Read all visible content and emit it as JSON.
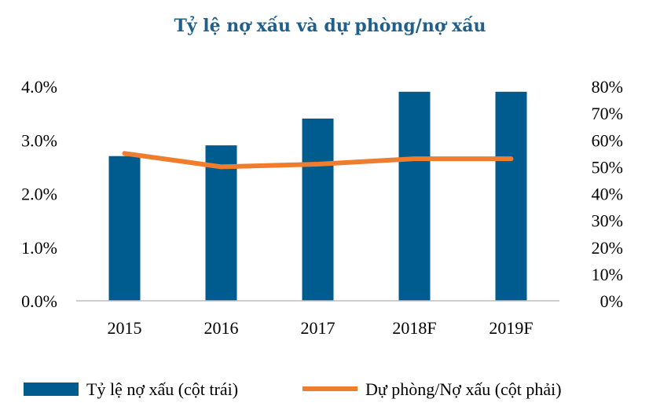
{
  "chart_data": {
    "type": "bar",
    "title": "Tỷ lệ nợ xấu và dự phòng/nợ xấu",
    "categories": [
      "2015",
      "2016",
      "2017",
      "2018F",
      "2019F"
    ],
    "series": [
      {
        "name": "Tỷ lệ nợ xấu (cột trái)",
        "type": "bar",
        "axis": "left",
        "color": "#005b8f",
        "values": [
          2.7,
          2.9,
          3.4,
          3.9,
          3.9
        ]
      },
      {
        "name": "Dự phòng/Nợ xấu (cột phải)",
        "type": "line",
        "axis": "right",
        "color": "#ef7d2e",
        "values": [
          55,
          50,
          51,
          53,
          53
        ]
      }
    ],
    "left_axis": {
      "ylim": [
        0,
        4
      ],
      "ticks": [
        0,
        1,
        2,
        3,
        4
      ],
      "tick_labels": [
        "0.0%",
        "1.0%",
        "2.0%",
        "3.0%",
        "4.0%"
      ]
    },
    "right_axis": {
      "ylim": [
        0,
        80
      ],
      "ticks": [
        0,
        10,
        20,
        30,
        40,
        50,
        60,
        70,
        80
      ],
      "tick_labels": [
        "0%",
        "10%",
        "20%",
        "30%",
        "40%",
        "50%",
        "60%",
        "70%",
        "80%"
      ]
    },
    "grid": false,
    "legend_position": "bottom"
  }
}
